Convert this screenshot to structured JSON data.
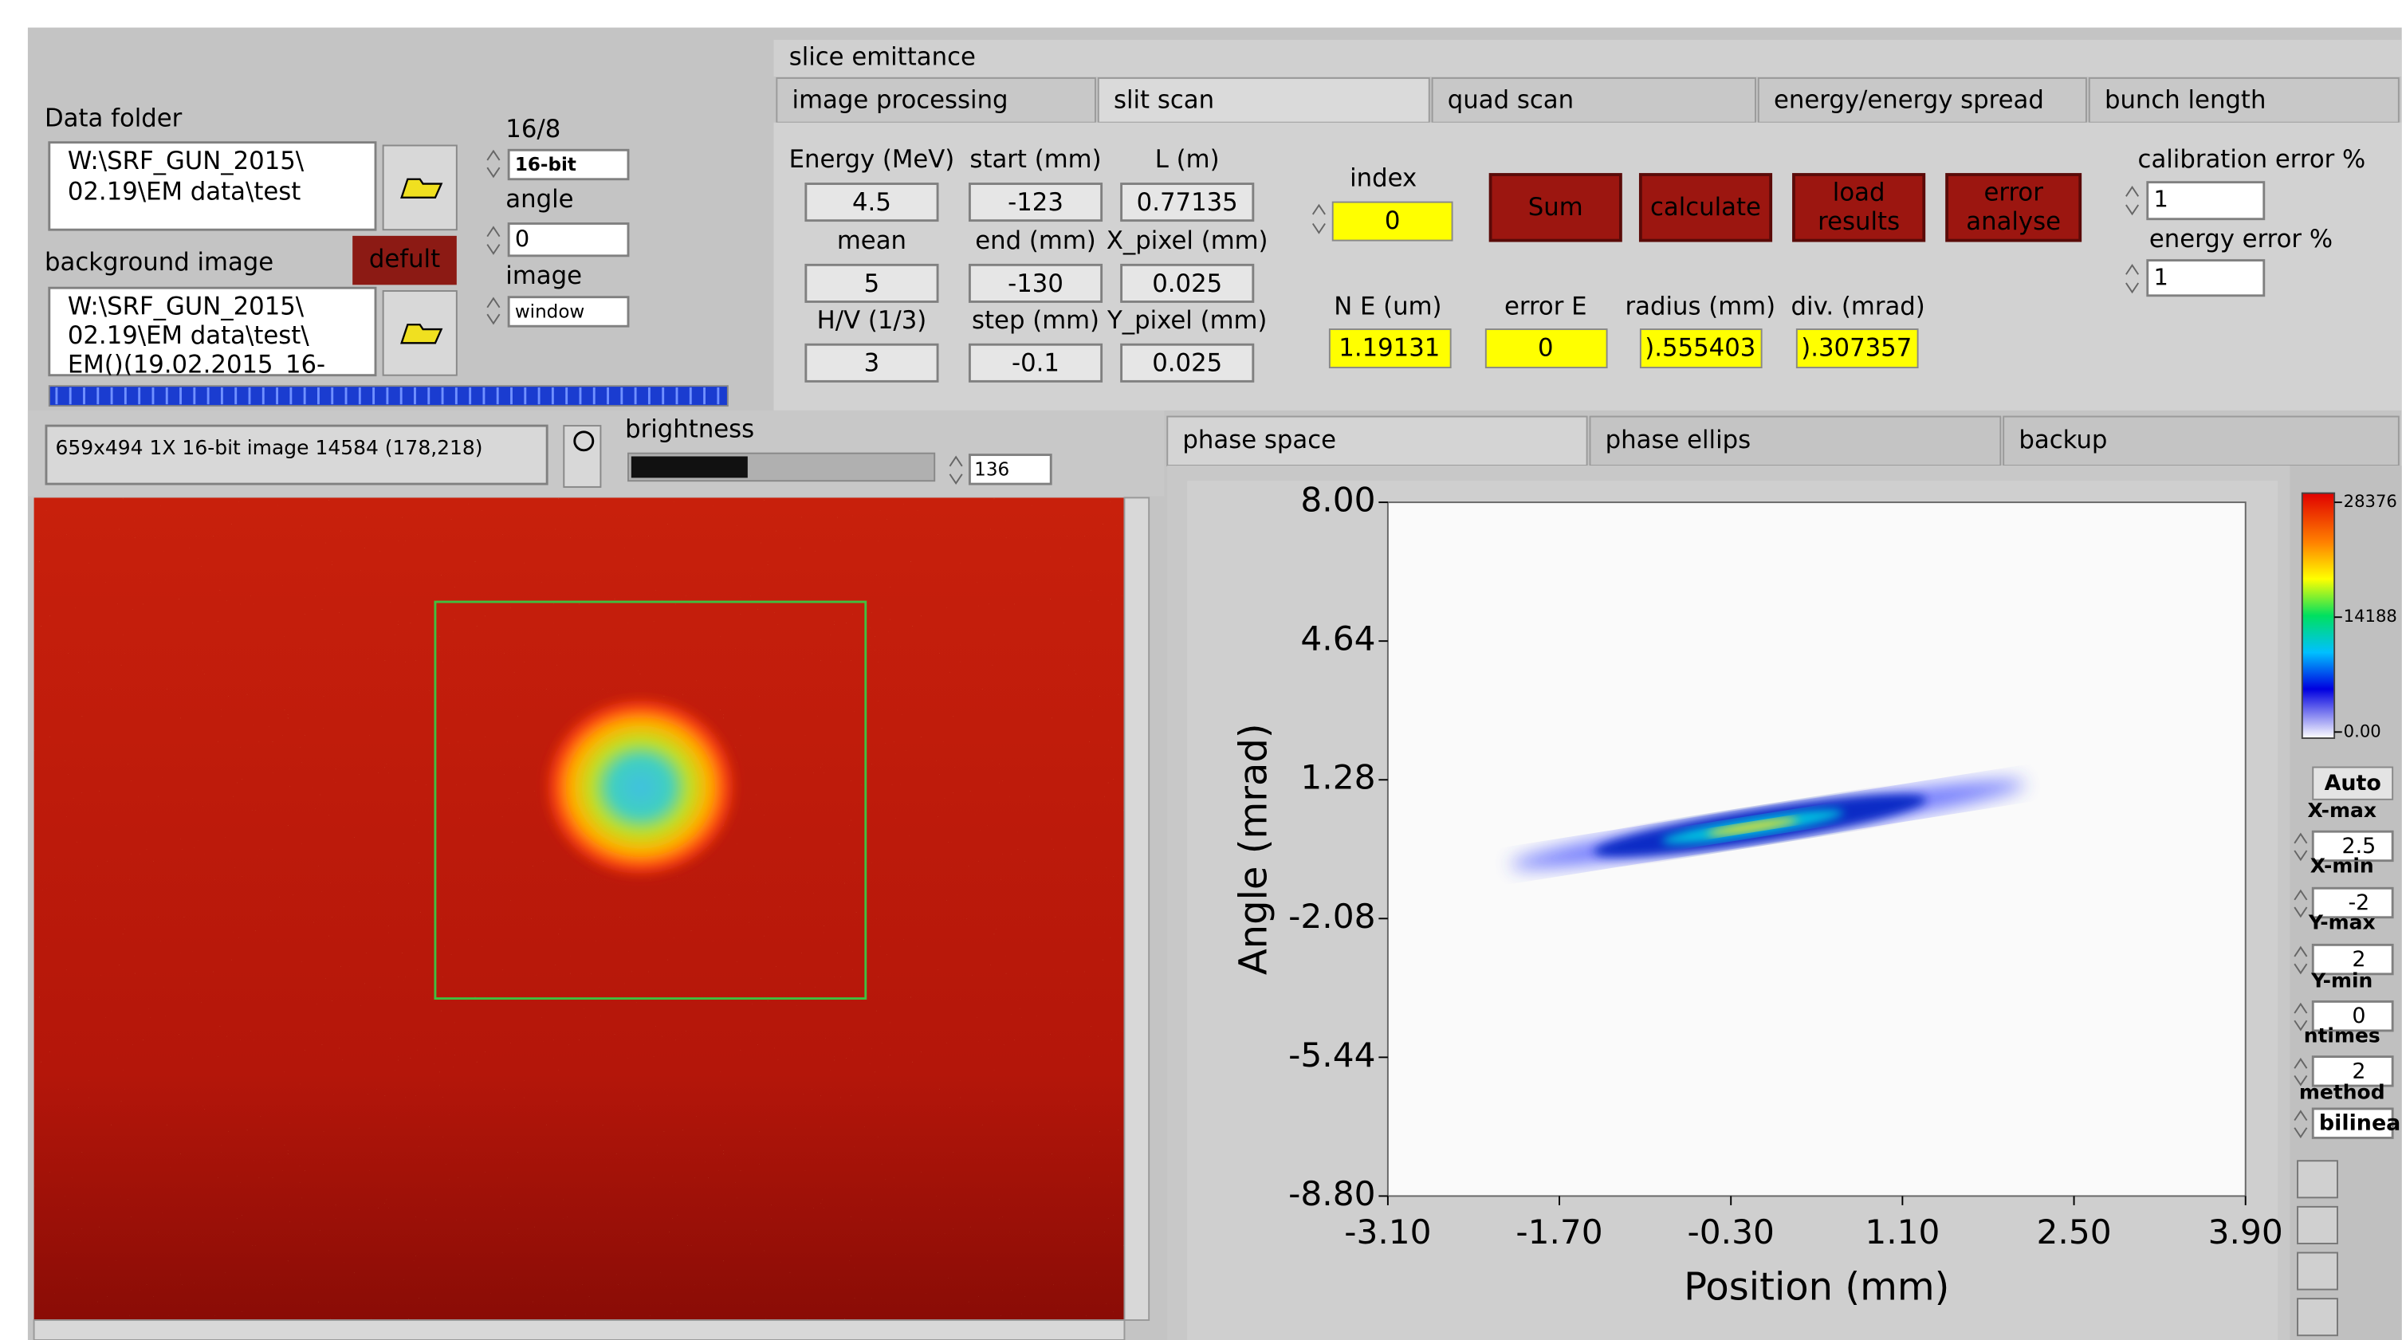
{
  "tabs": {
    "main": "slice emittance",
    "sub": [
      "image processing",
      "slit scan",
      "quad scan",
      "energy/energy spread",
      "bunch length"
    ]
  },
  "data_folder": {
    "label": "Data folder",
    "path": [
      "W:\\SRF_GUN_2015\\",
      "02.19\\EM data\\test"
    ]
  },
  "bit_depth": {
    "label": "16/8",
    "value": "16-bit"
  },
  "angle": {
    "label": "angle",
    "value": 0
  },
  "image": {
    "label": "image",
    "value": "window"
  },
  "background_image": {
    "label": "background image",
    "button": "defult",
    "path": [
      "W:\\SRF_GUN_2015\\",
      "02.19\\EM data\\test\\",
      "EM()(19.02.2015_16-"
    ]
  },
  "slit_scan": {
    "inputs": [
      {
        "label": "Energy (MeV)",
        "value": 4.5
      },
      {
        "label": "start (mm)",
        "value": -123
      },
      {
        "label": "L (m)",
        "value": 0.77135
      },
      {
        "label": "mean",
        "value": 5
      },
      {
        "label": "end (mm)",
        "value": -130
      },
      {
        "label": "X_pixel (mm)",
        "value": 0.025
      },
      {
        "label": "H/V (1/3)",
        "value": 3
      },
      {
        "label": "step (mm)",
        "value": -0.1
      },
      {
        "label": "Y_pixel (mm)",
        "value": 0.025
      }
    ],
    "index": {
      "label": "index",
      "value": 0
    },
    "buttons": [
      [
        "Sum"
      ],
      [
        "calculate"
      ],
      [
        "load",
        "results"
      ],
      [
        "error",
        "analyse"
      ]
    ],
    "calibration_error": {
      "label": "calibration error %",
      "value": 1
    },
    "energy_error": {
      "label": "energy error %",
      "value": 1
    },
    "outputs": [
      {
        "label": "N E (um)",
        "value": 1.19131
      },
      {
        "label": "error E",
        "value": 0
      },
      {
        "label": "radius  (mm)",
        "value": ").555403"
      },
      {
        "label": "div.  (mrad)",
        "value": ").307357"
      }
    ]
  },
  "image_view": {
    "status": "659x494 1X 16-bit image 14584    (178,218)",
    "brightness_label": "brightness",
    "brightness": 136
  },
  "plot_tabs": [
    "phase space",
    "phase ellips",
    "backup"
  ],
  "phase_space": {
    "xlabel": "Position (mm)",
    "ylabel": "Angle (mrad)",
    "xlim": [
      -3.1,
      3.9
    ],
    "ylim": [
      -8.8,
      8
    ],
    "xticks": [
      {
        "value": -3.1,
        "label": "-3.10"
      },
      {
        "value": -1.7,
        "label": "-1.70"
      },
      {
        "value": -0.3,
        "label": "-0.30"
      },
      {
        "value": 1.1,
        "label": "1.10"
      },
      {
        "value": 2.5,
        "label": "2.50"
      },
      {
        "value": 3.9,
        "label": "3.90"
      }
    ],
    "yticks": [
      {
        "value": 8,
        "label": "8.00"
      },
      {
        "value": 4.64,
        "label": "4.64"
      },
      {
        "value": 1.28,
        "label": "1.28"
      },
      {
        "value": -2.08,
        "label": "-2.08"
      },
      {
        "value": -5.44,
        "label": "-5.44"
      },
      {
        "value": -8.8,
        "label": "-8.80"
      }
    ],
    "colorbar_ticks": [
      28376,
      14188,
      {
        "value": 0,
        "label": "0.00"
      }
    ]
  },
  "controls": {
    "auto": "Auto",
    "fields": [
      {
        "label": "X-max",
        "value": 2.5
      },
      {
        "label": "X-min",
        "value": -2
      },
      {
        "label": "Y-max",
        "value": 2
      },
      {
        "label": "Y-min",
        "value": 0
      },
      {
        "label": "ntimes",
        "value": 2
      },
      {
        "label": "method",
        "value": "bilinea"
      }
    ]
  }
}
